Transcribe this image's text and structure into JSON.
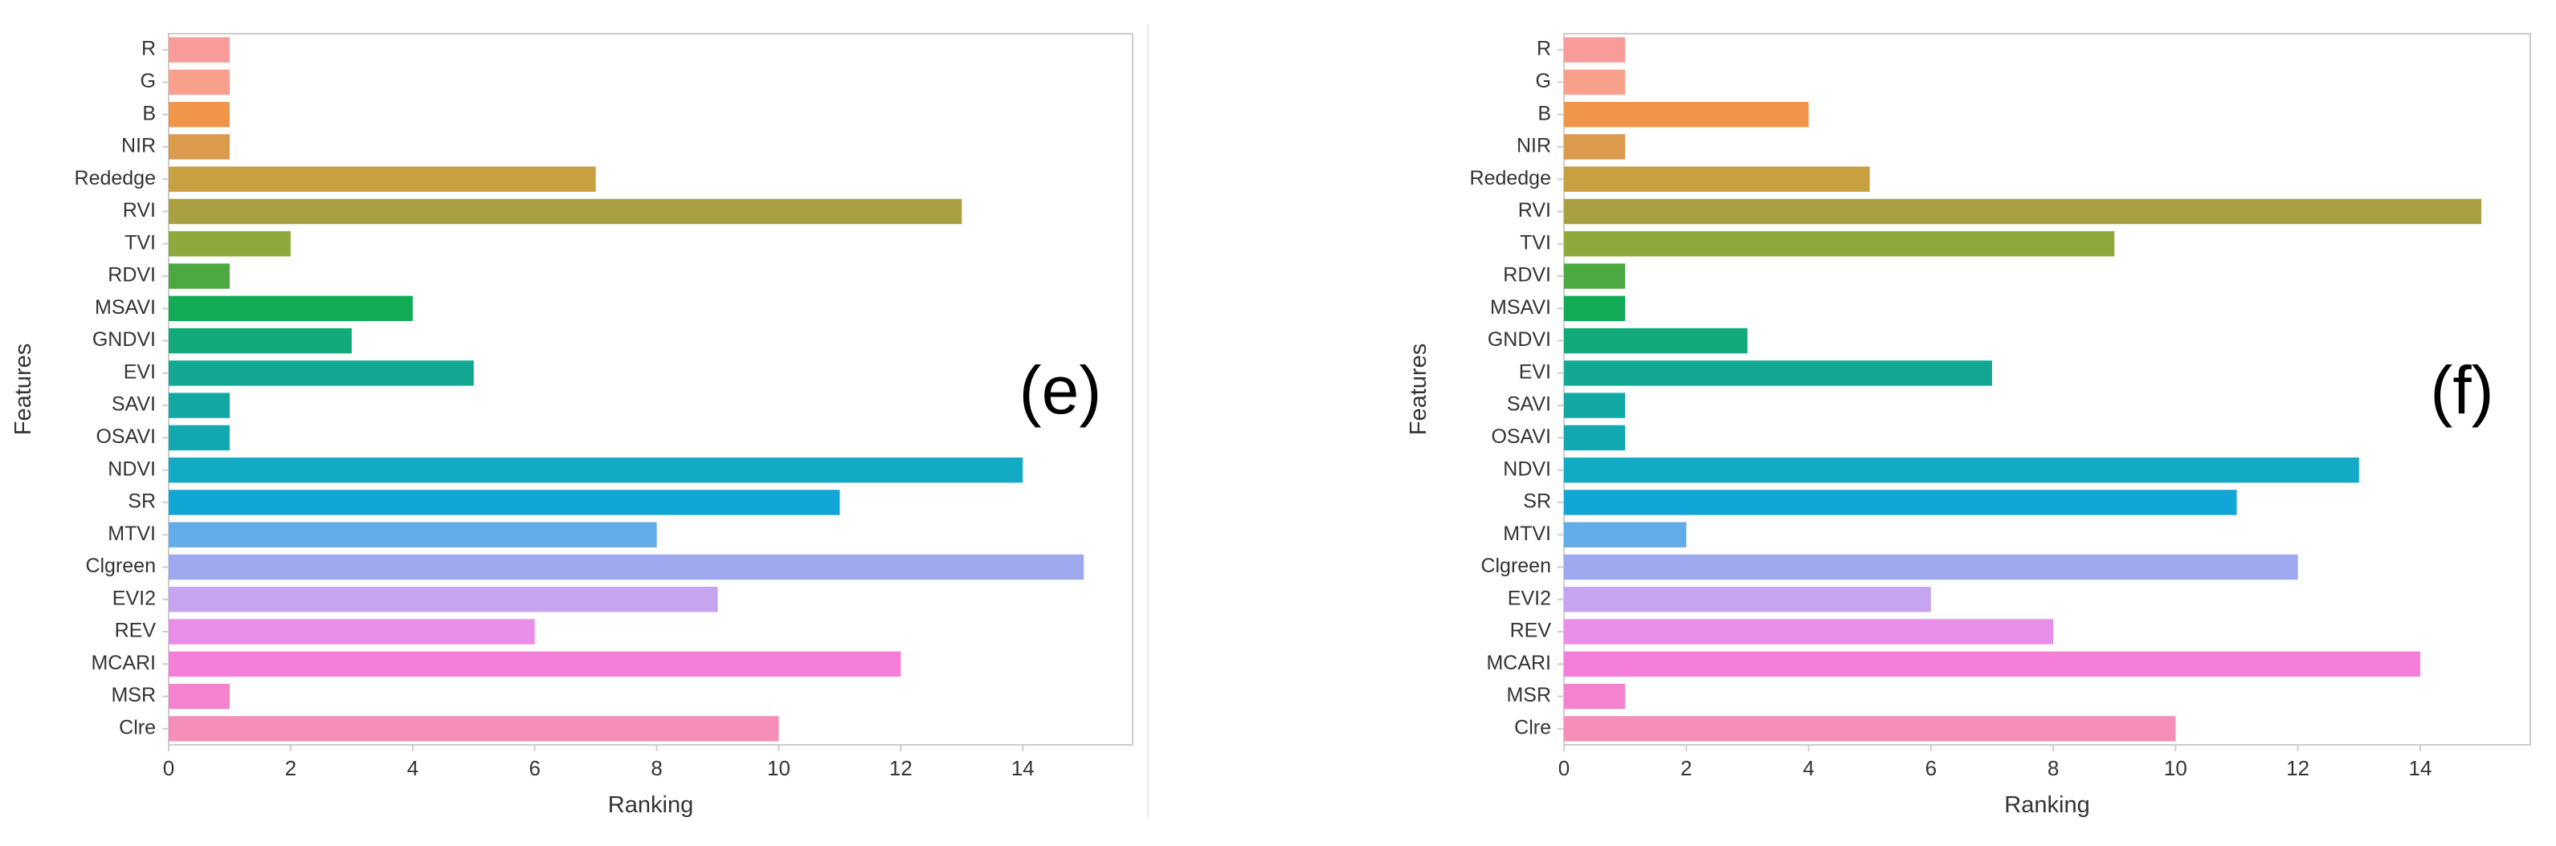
{
  "chart_data": [
    {
      "type": "bar",
      "orientation": "horizontal",
      "panel_label": "(e)",
      "xlabel": "Ranking",
      "ylabel": "Features",
      "xlim": [
        0,
        15.8
      ],
      "xticks": [
        0,
        2,
        4,
        6,
        8,
        10,
        12,
        14
      ],
      "grid": false,
      "categories": [
        "R",
        "G",
        "B",
        "NIR",
        "Rededge",
        "RVI",
        "TVI",
        "RDVI",
        "MSAVI",
        "GNDVI",
        "EVI",
        "SAVI",
        "OSAVI",
        "NDVI",
        "SR",
        "MTVI",
        "Clgreen",
        "EVI2",
        "REV",
        "MCARI",
        "MSR",
        "Clre"
      ],
      "values": [
        1,
        1,
        1,
        1,
        7,
        13,
        2,
        1,
        4,
        3,
        5,
        1,
        1,
        14,
        11,
        8,
        15,
        9,
        6,
        12,
        1,
        10
      ]
    },
    {
      "type": "bar",
      "orientation": "horizontal",
      "panel_label": "(f)",
      "xlabel": "Ranking",
      "ylabel": "Features",
      "xlim": [
        0,
        15.8
      ],
      "xticks": [
        0,
        2,
        4,
        6,
        8,
        10,
        12,
        14
      ],
      "grid": false,
      "categories": [
        "R",
        "G",
        "B",
        "NIR",
        "Rededge",
        "RVI",
        "TVI",
        "RDVI",
        "MSAVI",
        "GNDVI",
        "EVI",
        "SAVI",
        "OSAVI",
        "NDVI",
        "SR",
        "MTVI",
        "Clgreen",
        "EVI2",
        "REV",
        "MCARI",
        "MSR",
        "Clre"
      ],
      "values": [
        1,
        1,
        4,
        1,
        5,
        15,
        9,
        1,
        1,
        3,
        7,
        1,
        1,
        13,
        11,
        2,
        12,
        6,
        8,
        14,
        1,
        10
      ]
    }
  ],
  "colors": [
    "#f99c99",
    "#f8a08c",
    "#f0954a",
    "#dc9a4c",
    "#c8a040",
    "#a8a040",
    "#8fa83c",
    "#4ca840",
    "#11ac55",
    "#12aa7a",
    "#12a891",
    "#12a8a4",
    "#12a8b2",
    "#12aac4",
    "#12a6d6",
    "#62acea",
    "#9ea8ee",
    "#c6a4f0",
    "#e88ee8",
    "#f47ed8",
    "#f482cc",
    "#f58eb9"
  ]
}
